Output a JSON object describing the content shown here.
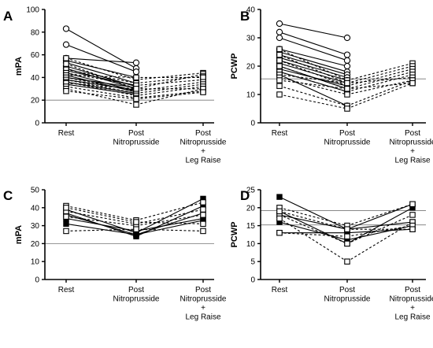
{
  "chart_data": [
    {
      "panel": "A",
      "type": "line",
      "ylabel": "mPA",
      "ylim": [
        0,
        100
      ],
      "yticks": [
        "0",
        "20",
        "40",
        "60",
        "80",
        "100"
      ],
      "categories": [
        [
          "Rest"
        ],
        [
          "Post",
          "Nitroprusside"
        ],
        [
          "Post",
          "Nitroprusside",
          "+",
          "Leg  Raise"
        ]
      ],
      "reference_lines": [
        20
      ],
      "series": [
        {
          "style": "solid",
          "marker": "circle",
          "values": [
            83,
            48,
            null
          ]
        },
        {
          "style": "solid",
          "marker": "circle",
          "values": [
            69,
            45,
            null
          ]
        },
        {
          "style": "solid",
          "marker": "circle",
          "values": [
            57,
            53,
            null
          ]
        },
        {
          "style": "solid",
          "marker": "circle",
          "values": [
            55,
            40,
            null
          ]
        },
        {
          "style": "solid",
          "marker": "circle",
          "values": [
            53,
            35,
            null
          ]
        },
        {
          "style": "solid",
          "marker": "circle",
          "values": [
            50,
            32,
            null
          ]
        },
        {
          "style": "solid",
          "marker": "circle",
          "values": [
            48,
            30,
            null
          ]
        },
        {
          "style": "solid",
          "marker": "circle",
          "values": [
            46,
            33,
            null
          ]
        },
        {
          "style": "solid",
          "marker": "circle",
          "values": [
            44,
            28,
            null
          ]
        },
        {
          "style": "solid",
          "marker": "circle",
          "values": [
            42,
            27,
            null
          ]
        },
        {
          "style": "solid",
          "marker": "circle",
          "values": [
            40,
            31,
            null
          ]
        },
        {
          "style": "solid",
          "marker": "circle",
          "values": [
            38,
            29,
            null
          ]
        },
        {
          "style": "solid",
          "marker": "circle",
          "values": [
            36,
            26,
            null
          ]
        },
        {
          "style": "solid",
          "marker": "circle",
          "values": [
            34,
            25,
            null
          ]
        },
        {
          "style": "dashed",
          "marker": "square",
          "values": [
            57,
            38,
            44
          ]
        },
        {
          "style": "dashed",
          "marker": "square",
          "values": [
            52,
            30,
            43
          ]
        },
        {
          "style": "dashed",
          "marker": "square",
          "values": [
            47,
            35,
            41
          ]
        },
        {
          "style": "dashed",
          "marker": "square",
          "values": [
            44,
            33,
            38
          ]
        },
        {
          "style": "dashed",
          "marker": "square",
          "values": [
            42,
            40,
            40
          ]
        },
        {
          "style": "dashed",
          "marker": "square",
          "values": [
            40,
            28,
            36
          ]
        },
        {
          "style": "dashed",
          "marker": "square",
          "values": [
            38,
            26,
            34
          ]
        },
        {
          "style": "dashed",
          "marker": "square",
          "values": [
            36,
            24,
            32
          ]
        },
        {
          "style": "dashed",
          "marker": "square",
          "values": [
            35,
            30,
            30
          ]
        },
        {
          "style": "dashed",
          "marker": "square",
          "values": [
            32,
            22,
            28
          ]
        },
        {
          "style": "dashed",
          "marker": "square",
          "values": [
            30,
            16,
            30
          ]
        },
        {
          "style": "dashed",
          "marker": "square",
          "values": [
            28,
            21,
            27
          ]
        }
      ]
    },
    {
      "panel": "B",
      "type": "line",
      "ylabel": "PCWP",
      "ylim": [
        0,
        40
      ],
      "yticks": [
        "0",
        "10",
        "20",
        "30",
        "40"
      ],
      "categories": [
        [
          "Rest"
        ],
        [
          "Post",
          "Nitroprusside"
        ],
        [
          "Post",
          "Nitroprusside",
          "+",
          "Leg  Raise"
        ]
      ],
      "reference_lines": [
        15.5
      ],
      "series": [
        {
          "style": "solid",
          "marker": "circle",
          "values": [
            35,
            30,
            null
          ]
        },
        {
          "style": "solid",
          "marker": "circle",
          "values": [
            32,
            24,
            null
          ]
        },
        {
          "style": "solid",
          "marker": "circle",
          "values": [
            30,
            22,
            null
          ]
        },
        {
          "style": "solid",
          "marker": "circle",
          "values": [
            26,
            20,
            null
          ]
        },
        {
          "style": "solid",
          "marker": "circle",
          "values": [
            25,
            18,
            null
          ]
        },
        {
          "style": "solid",
          "marker": "circle",
          "values": [
            24,
            17,
            null
          ]
        },
        {
          "style": "solid",
          "marker": "circle",
          "values": [
            23,
            16,
            null
          ]
        },
        {
          "style": "solid",
          "marker": "circle",
          "values": [
            22,
            15,
            null
          ]
        },
        {
          "style": "solid",
          "marker": "circle",
          "values": [
            21,
            14,
            null
          ]
        },
        {
          "style": "solid",
          "marker": "circle",
          "values": [
            20,
            12,
            null
          ]
        },
        {
          "style": "solid",
          "marker": "circle",
          "values": [
            19,
            13,
            null
          ]
        },
        {
          "style": "solid",
          "marker": "circle",
          "values": [
            18,
            11,
            null
          ]
        },
        {
          "style": "solid",
          "marker": "circle",
          "values": [
            17,
            6,
            null
          ]
        },
        {
          "style": "dashed",
          "marker": "square",
          "values": [
            26,
            15,
            21
          ]
        },
        {
          "style": "dashed",
          "marker": "square",
          "values": [
            24,
            14,
            20
          ]
        },
        {
          "style": "dashed",
          "marker": "square",
          "values": [
            22,
            13,
            19
          ]
        },
        {
          "style": "dashed",
          "marker": "square",
          "values": [
            20,
            12,
            18
          ]
        },
        {
          "style": "dashed",
          "marker": "square",
          "values": [
            18,
            11,
            17
          ]
        },
        {
          "style": "dashed",
          "marker": "square",
          "values": [
            17,
            14,
            16
          ]
        },
        {
          "style": "dashed",
          "marker": "square",
          "values": [
            16,
            10,
            15
          ]
        },
        {
          "style": "dashed",
          "marker": "square",
          "values": [
            15,
            12,
            14
          ]
        },
        {
          "style": "dashed",
          "marker": "square",
          "values": [
            13,
            6,
            15
          ]
        },
        {
          "style": "dashed",
          "marker": "square",
          "values": [
            10,
            5,
            14
          ]
        }
      ]
    },
    {
      "panel": "C",
      "type": "line",
      "ylabel": "mPA",
      "ylim": [
        0,
        50
      ],
      "yticks": [
        "0",
        "10",
        "20",
        "30",
        "40",
        "50"
      ],
      "categories": [
        [
          "Rest"
        ],
        [
          "Post",
          "Nitroprusside"
        ],
        [
          "Post",
          "Nitroprusside",
          "+",
          "Leg  Raise"
        ]
      ],
      "reference_lines": [
        20
      ],
      "series": [
        {
          "style": "solid",
          "marker": "square-filled",
          "values": [
            39,
            26,
            45
          ]
        },
        {
          "style": "solid",
          "marker": "square-filled",
          "values": [
            37,
            24,
            41
          ]
        },
        {
          "style": "solid",
          "marker": "square-filled",
          "values": [
            36,
            25,
            37
          ]
        },
        {
          "style": "solid",
          "marker": "square-filled",
          "values": [
            34,
            27,
            34
          ]
        },
        {
          "style": "solid",
          "marker": "square-filled",
          "values": [
            31,
            25,
            33
          ]
        },
        {
          "style": "dashed",
          "marker": "square",
          "values": [
            41,
            33,
            43
          ]
        },
        {
          "style": "dashed",
          "marker": "square",
          "values": [
            38,
            31,
            39
          ]
        },
        {
          "style": "dashed",
          "marker": "square",
          "values": [
            35,
            30,
            36
          ]
        },
        {
          "style": "dashed",
          "marker": "square",
          "values": [
            27,
            28,
            27
          ]
        },
        {
          "style": "dashed",
          "marker": "square",
          "values": [
            40,
            32,
            31
          ]
        }
      ]
    },
    {
      "panel": "D",
      "type": "line",
      "ylabel": "PCWP",
      "ylim": [
        0,
        25
      ],
      "yticks": [
        "0",
        "5",
        "10",
        "15",
        "20",
        "25"
      ],
      "categories": [
        [
          "Rest"
        ],
        [
          "Post",
          "Nitroprusside"
        ],
        [
          "Post",
          "Nitroprusside",
          "+",
          "Leg  Raise"
        ]
      ],
      "reference_lines": [
        19.2,
        15.2
      ],
      "series": [
        {
          "style": "solid",
          "marker": "square-filled",
          "values": [
            23,
            14,
            21
          ]
        },
        {
          "style": "solid",
          "marker": "square-filled",
          "values": [
            19,
            10,
            20
          ]
        },
        {
          "style": "solid",
          "marker": "square-filled",
          "values": [
            18,
            14,
            16
          ]
        },
        {
          "style": "solid",
          "marker": "square-filled",
          "values": [
            16,
            11,
            15
          ]
        },
        {
          "style": "solid",
          "marker": "square-filled",
          "values": [
            13,
            13,
            14
          ]
        },
        {
          "style": "dashed",
          "marker": "square",
          "values": [
            20,
            15,
            21
          ]
        },
        {
          "style": "dashed",
          "marker": "square",
          "values": [
            18,
            10,
            18
          ]
        },
        {
          "style": "dashed",
          "marker": "square",
          "values": [
            17,
            5,
            16
          ]
        },
        {
          "style": "dashed",
          "marker": "square",
          "values": [
            13,
            12,
            15
          ]
        },
        {
          "style": "dashed",
          "marker": "square",
          "values": [
            19,
            14,
            14
          ]
        }
      ]
    }
  ]
}
